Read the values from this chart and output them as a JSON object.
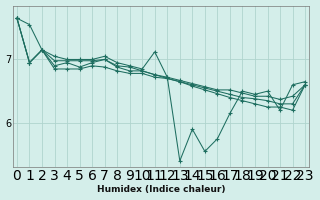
{
  "xlabel": "Humidex (Indice chaleur)",
  "bg_color": "#d4eeea",
  "grid_color": "#b0d4ce",
  "line_color": "#1e6e60",
  "x_ticks": [
    0,
    1,
    2,
    3,
    4,
    5,
    6,
    7,
    8,
    9,
    10,
    11,
    12,
    13,
    14,
    15,
    16,
    17,
    18,
    19,
    20,
    21,
    22,
    23
  ],
  "yticks": [
    6,
    7
  ],
  "ylim": [
    5.3,
    7.85
  ],
  "xlim": [
    -0.3,
    23.3
  ],
  "series": [
    [
      7.65,
      7.55,
      7.15,
      7.05,
      7.0,
      7.0,
      7.0,
      7.05,
      6.95,
      6.9,
      6.85,
      7.12,
      6.72,
      5.4,
      5.9,
      5.55,
      5.75,
      6.15,
      6.5,
      6.45,
      6.5,
      6.2,
      6.6,
      6.65
    ],
    [
      7.65,
      6.95,
      7.15,
      6.85,
      6.85,
      6.85,
      6.9,
      6.88,
      6.82,
      6.78,
      6.78,
      6.72,
      6.7,
      6.65,
      6.58,
      6.52,
      6.46,
      6.4,
      6.35,
      6.3,
      6.25,
      6.25,
      6.2,
      6.6
    ],
    [
      7.65,
      6.95,
      7.15,
      6.9,
      6.95,
      6.88,
      6.95,
      7.0,
      6.88,
      6.82,
      6.82,
      6.76,
      6.72,
      6.67,
      6.62,
      6.57,
      6.52,
      6.52,
      6.47,
      6.42,
      6.42,
      6.37,
      6.42,
      6.6
    ],
    [
      7.65,
      6.95,
      7.15,
      6.98,
      6.98,
      6.98,
      6.98,
      7.0,
      6.9,
      6.88,
      6.82,
      6.76,
      6.7,
      6.65,
      6.6,
      6.55,
      6.5,
      6.45,
      6.4,
      6.38,
      6.35,
      6.3,
      6.3,
      6.6
    ]
  ]
}
